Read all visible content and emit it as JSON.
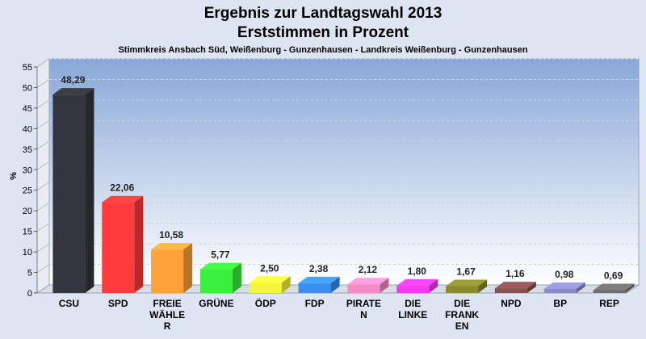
{
  "chart_data": {
    "type": "bar",
    "title": "Ergebnis zur Landtagswahl 2013",
    "subtitle": "Erststimmen in Prozent",
    "caption": "Stimmkreis Ansbach Süd, Weißenburg - Gunzenhausen - Landkreis Weißenburg - Gunzenhausen",
    "ylabel": "%",
    "ylim": [
      0,
      55
    ],
    "yticks": [
      "0",
      "5",
      "10",
      "15",
      "20",
      "25",
      "30",
      "35",
      "40",
      "45",
      "50",
      "55"
    ],
    "categories": [
      [
        "CSU"
      ],
      [
        "SPD"
      ],
      [
        "FREIE",
        "WÄHLE",
        "R"
      ],
      [
        "GRÜNE"
      ],
      [
        "ÖDP"
      ],
      [
        "FDP"
      ],
      [
        "PIRATE",
        "N"
      ],
      [
        "DIE",
        "LINKE"
      ],
      [
        "DIE",
        "FRANK",
        "EN"
      ],
      [
        "NPD"
      ],
      [
        "BP"
      ],
      [
        "REP"
      ]
    ],
    "values": [
      48.29,
      22.06,
      10.58,
      5.77,
      2.5,
      2.38,
      2.12,
      1.8,
      1.67,
      1.16,
      0.98,
      0.69
    ],
    "value_labels": [
      "48,29",
      "22,06",
      "10,58",
      "5,77",
      "2,50",
      "2,38",
      "2,12",
      "1,80",
      "1,67",
      "1,16",
      "0,98",
      "0,69"
    ],
    "colors": [
      "#33363e",
      "#ff3b3b",
      "#ffa23a",
      "#39f03c",
      "#f5f53a",
      "#3a90f0",
      "#f58cc8",
      "#f23af2",
      "#8a8a2e",
      "#8a5050",
      "#8a8ac8",
      "#6e6e6e"
    ],
    "grid": true
  }
}
